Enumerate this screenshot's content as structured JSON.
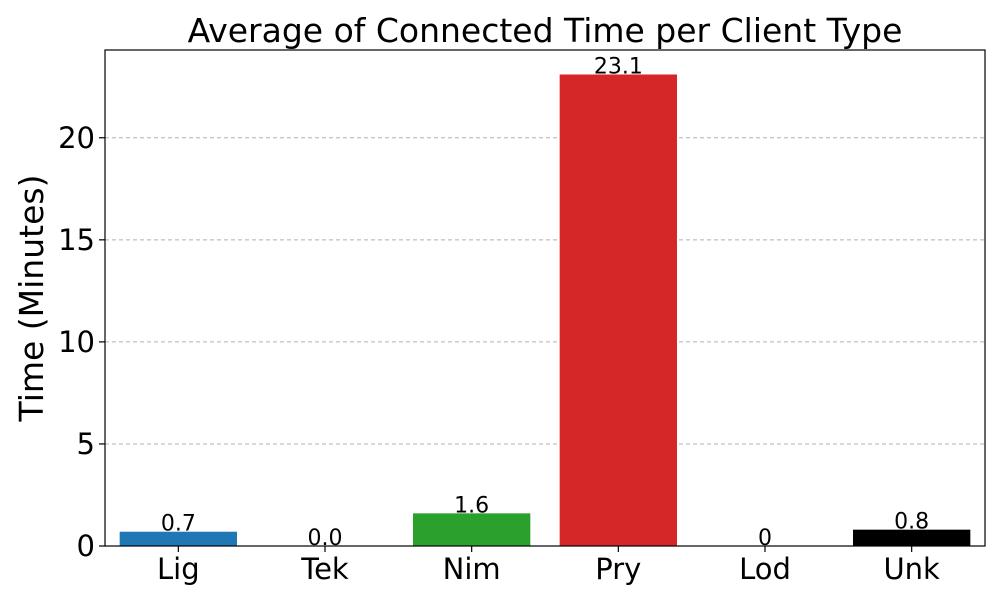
{
  "chart_data": {
    "type": "bar",
    "title": "Average of Connected Time per Client Type",
    "xlabel": "",
    "ylabel": "Time (Minutes)",
    "categories": [
      "Lig",
      "Tek",
      "Nim",
      "Pry",
      "Lod",
      "Unk"
    ],
    "values": [
      0.7,
      0.0,
      1.6,
      23.1,
      0,
      0.8
    ],
    "data_labels": [
      "0.7",
      "0.0",
      "1.6",
      "23.1",
      "0",
      "0.8"
    ],
    "colors": [
      "#1f77b4",
      "#ff7f0e",
      "#2ca02c",
      "#d62728",
      "#9467bd",
      "#000000"
    ],
    "ylim": [
      0,
      24.3
    ],
    "yticks": [
      0,
      5,
      10,
      15,
      20
    ],
    "ytick_labels": [
      "0",
      "5",
      "10",
      "15",
      "20"
    ],
    "grid": "y-dashed",
    "legend": "none"
  }
}
